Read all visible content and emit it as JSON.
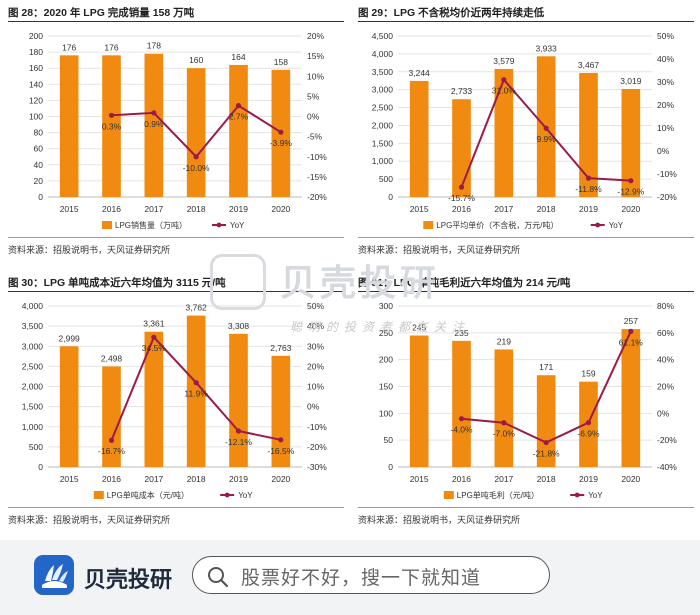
{
  "charts": [
    {
      "title": "图 28：2020 年 LPG 完成销量 158 万吨",
      "source": "资料来源：招股说明书，天风证券研究所",
      "bar_color": "#f08a10",
      "line_color": "#9c1a47"
    },
    {
      "title": "图 29：LPG 不含税均价近两年持续走低",
      "source": "资料来源：招股说明书，天风证券研究所",
      "bar_color": "#f08a10",
      "line_color": "#9c1a47"
    },
    {
      "title": "图 30：LPG 单吨成本近六年均值为 3115 元/吨",
      "source": "资料来源：招股说明书，天风证券研究所",
      "bar_color": "#f08a10",
      "line_color": "#9c1a47"
    },
    {
      "title": "图 31：LPG 单吨毛利近六年均值为 214 元/吨",
      "source": "资料来源：招股说明书，天风证券研究所",
      "bar_color": "#f08a10",
      "line_color": "#9c1a47"
    }
  ],
  "chart_data": [
    {
      "type": "bar+line",
      "title": "图 28：2020 年 LPG 完成销量 158 万吨",
      "categories": [
        "2015",
        "2016",
        "2017",
        "2018",
        "2019",
        "2020"
      ],
      "series": [
        {
          "name": "LPG销售量（万吨）",
          "type": "bar",
          "axis": "left",
          "values": [
            176,
            176,
            178,
            160,
            164,
            158
          ],
          "labels": [
            "176",
            "176",
            "178",
            "160",
            "164",
            "158"
          ]
        },
        {
          "name": "YoY",
          "type": "line",
          "axis": "right",
          "x": [
            "2016",
            "2017",
            "2018",
            "2019",
            "2020"
          ],
          "values": [
            0.3,
            0.9,
            -10.0,
            2.7,
            -3.9
          ],
          "labels": [
            "0.3%",
            "0.9%",
            "-10.0%",
            "2.7%",
            "-3.9%"
          ]
        }
      ],
      "ylim": [
        0,
        200
      ],
      "yticks": [
        0,
        20,
        40,
        60,
        80,
        100,
        120,
        140,
        160,
        180,
        200
      ],
      "ytick_labels": [
        "0",
        "20",
        "40",
        "60",
        "80",
        "100",
        "120",
        "140",
        "160",
        "180",
        "200"
      ],
      "y2lim": [
        -20,
        20
      ],
      "y2ticks": [
        -20,
        -15,
        -10,
        -5,
        0,
        5,
        10,
        15,
        20
      ],
      "y2tick_labels": [
        "-20%",
        "-15%",
        "-10%",
        "-5%",
        "0%",
        "5%",
        "10%",
        "15%",
        "20%"
      ],
      "legend": [
        "LPG销售量（万吨）",
        "YoY"
      ]
    },
    {
      "type": "bar+line",
      "title": "图 29：LPG 不含税均价近两年持续走低",
      "categories": [
        "2015",
        "2016",
        "2017",
        "2018",
        "2019",
        "2020"
      ],
      "series": [
        {
          "name": "LPG平均单价（不含税，万元/吨）",
          "type": "bar",
          "axis": "left",
          "values": [
            3244,
            2733,
            3579,
            3933,
            3467,
            3019
          ],
          "labels": [
            "3,244",
            "2,733",
            "3,579",
            "3,933",
            "3,467",
            "3,019"
          ]
        },
        {
          "name": "YoY",
          "type": "line",
          "axis": "right",
          "x": [
            "2016",
            "2017",
            "2018",
            "2019",
            "2020"
          ],
          "values": [
            -15.7,
            31.0,
            9.9,
            -11.8,
            -12.9
          ],
          "labels": [
            "-15.7%",
            "31.0%",
            "9.9%",
            "-11.8%",
            "-12.9%"
          ]
        }
      ],
      "ylim": [
        0,
        4500
      ],
      "yticks": [
        0,
        500,
        1000,
        1500,
        2000,
        2500,
        3000,
        3500,
        4000,
        4500
      ],
      "ytick_labels": [
        "0",
        "500",
        "1,000",
        "1,500",
        "2,000",
        "2,500",
        "3,000",
        "3,500",
        "4,000",
        "4,500"
      ],
      "y2lim": [
        -20,
        50
      ],
      "y2ticks": [
        -20,
        -10,
        0,
        10,
        20,
        30,
        40,
        50
      ],
      "y2tick_labels": [
        "-20%",
        "-10%",
        "0%",
        "10%",
        "20%",
        "30%",
        "40%",
        "50%"
      ],
      "legend": [
        "LPG平均单价（不含税，万元/吨）",
        "YoY"
      ]
    },
    {
      "type": "bar+line",
      "title": "图 30：LPG 单吨成本近六年均值为 3115 元/吨",
      "categories": [
        "2015",
        "2016",
        "2017",
        "2018",
        "2019",
        "2020"
      ],
      "series": [
        {
          "name": "LPG单吨成本（元/吨）",
          "type": "bar",
          "axis": "left",
          "values": [
            2999,
            2498,
            3361,
            3762,
            3308,
            2763
          ],
          "labels": [
            "2,999",
            "2,498",
            "3,361",
            "3,762",
            "3,308",
            "2,763"
          ]
        },
        {
          "name": "YoY",
          "type": "line",
          "axis": "right",
          "x": [
            "2016",
            "2017",
            "2018",
            "2019",
            "2020"
          ],
          "values": [
            -16.7,
            34.5,
            11.9,
            -12.1,
            -16.5
          ],
          "labels": [
            "-16.7%",
            "34.5%",
            "11.9%",
            "-12.1%",
            "-16.5%"
          ]
        }
      ],
      "ylim": [
        0,
        4000
      ],
      "yticks": [
        0,
        500,
        1000,
        1500,
        2000,
        2500,
        3000,
        3500,
        4000
      ],
      "ytick_labels": [
        "0",
        "500",
        "1,000",
        "1,500",
        "2,000",
        "2,500",
        "3,000",
        "3,500",
        "4,000"
      ],
      "y2lim": [
        -30,
        50
      ],
      "y2ticks": [
        -30,
        -20,
        -10,
        0,
        10,
        20,
        30,
        40,
        50
      ],
      "y2tick_labels": [
        "-30%",
        "-20%",
        "-10%",
        "0%",
        "10%",
        "20%",
        "30%",
        "40%",
        "50%"
      ],
      "legend": [
        "LPG单吨成本（元/吨）",
        "YoY"
      ]
    },
    {
      "type": "bar+line",
      "title": "图 31：LPG 单吨毛利近六年均值为 214 元/吨",
      "categories": [
        "2015",
        "2016",
        "2017",
        "2018",
        "2019",
        "2020"
      ],
      "series": [
        {
          "name": "LPG单吨毛利（元/吨）",
          "type": "bar",
          "axis": "left",
          "values": [
            245,
            235,
            219,
            171,
            159,
            257
          ],
          "labels": [
            "245",
            "235",
            "219",
            "171",
            "159",
            "257"
          ]
        },
        {
          "name": "YoY",
          "type": "line",
          "axis": "right",
          "x": [
            "2016",
            "2017",
            "2018",
            "2019",
            "2020"
          ],
          "values": [
            -4.0,
            -7.0,
            -21.8,
            -6.9,
            61.1
          ],
          "labels": [
            "-4.0%",
            "-7.0%",
            "-21.8%",
            "-6.9%",
            "61.1%"
          ]
        }
      ],
      "ylim": [
        0,
        300
      ],
      "yticks": [
        0,
        50,
        100,
        150,
        200,
        250,
        300
      ],
      "ytick_labels": [
        "0",
        "50",
        "100",
        "150",
        "200",
        "250",
        "300"
      ],
      "y2lim": [
        -40,
        80
      ],
      "y2ticks": [
        -40,
        -20,
        0,
        20,
        40,
        60,
        80
      ],
      "y2tick_labels": [
        "-40%",
        "-20%",
        "0%",
        "20%",
        "40%",
        "60%",
        "80%"
      ],
      "legend": [
        "LPG单吨毛利（元/吨）",
        "YoY"
      ]
    }
  ],
  "watermark": {
    "title": "贝壳投研",
    "subtitle": "聪明的投资者都在关注"
  },
  "footer": {
    "brand": "贝壳投研",
    "search_placeholder": "股票好不好，搜一下就知道"
  },
  "colors": {
    "bar": "#f08a10",
    "line": "#9c1a47",
    "grid": "#e3e3e3",
    "footer_bg": "#f2f3f5",
    "brand_blue": "#2466c7"
  }
}
